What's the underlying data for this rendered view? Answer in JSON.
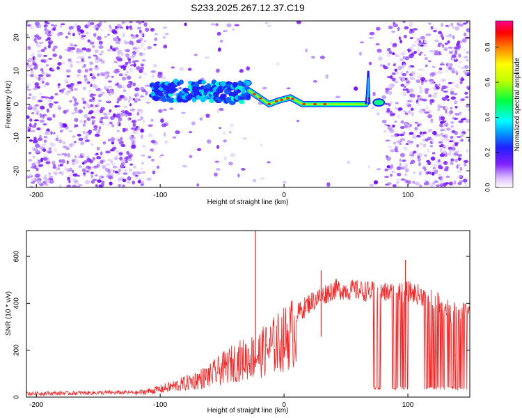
{
  "title": "S233.2025.267.12.37.C19",
  "chart_data": [
    {
      "type": "heatmap",
      "name": "spectrogram",
      "xlabel": "Height of straight line (km)",
      "ylabel": "Frequency (Hz)",
      "xlim": [
        -208,
        150
      ],
      "ylim": [
        -25,
        25
      ],
      "xticks": [
        -200,
        -100,
        0,
        100
      ],
      "yticks": [
        -20,
        -10,
        0,
        10,
        20
      ],
      "colorbar": {
        "label": "Normalized spectral amplitude",
        "range": [
          0.0,
          0.95
        ],
        "ticks": [
          0.0,
          0.2,
          0.4,
          0.6,
          0.8
        ],
        "tick_labels": [
          "0.0",
          "0.2",
          "0.4",
          "0.6",
          "0.8"
        ]
      },
      "signal_track": [
        {
          "x": -107,
          "y": 4
        },
        {
          "x": -95,
          "y": 4
        },
        {
          "x": -80,
          "y": 4
        },
        {
          "x": -60,
          "y": 4
        },
        {
          "x": -40,
          "y": 3
        },
        {
          "x": -28,
          "y": 4
        },
        {
          "x": -20,
          "y": 2
        },
        {
          "x": -12,
          "y": 0
        },
        {
          "x": -5,
          "y": 1
        },
        {
          "x": 5,
          "y": 2
        },
        {
          "x": 15,
          "y": 0
        },
        {
          "x": 40,
          "y": 0
        },
        {
          "x": 66,
          "y": 0
        }
      ],
      "annotations": [
        "vertical spike near 68 km up to ~10 Hz",
        "blob at ~76 km, ~0 Hz"
      ]
    },
    {
      "type": "line",
      "name": "snr",
      "xlabel": "Height of straight line (km)",
      "ylabel": "SNR (10 * v/v)",
      "xlim": [
        -208,
        150
      ],
      "ylim": [
        0,
        710
      ],
      "xticks": [
        -200,
        -100,
        0,
        100
      ],
      "yticks": [
        0,
        200,
        400,
        600
      ],
      "series_color": "#ff2020",
      "series": [
        {
          "name": "SNR",
          "envelope": [
            {
              "x": -208,
              "y": 15
            },
            {
              "x": -120,
              "y": 20
            },
            {
              "x": -100,
              "y": 40
            },
            {
              "x": -80,
              "y": 70
            },
            {
              "x": -60,
              "y": 110
            },
            {
              "x": -40,
              "y": 180
            },
            {
              "x": -20,
              "y": 220
            },
            {
              "x": 0,
              "y": 300
            },
            {
              "x": 20,
              "y": 400
            },
            {
              "x": 40,
              "y": 460
            },
            {
              "x": 60,
              "y": 455
            },
            {
              "x": 80,
              "y": 445
            },
            {
              "x": 100,
              "y": 450
            },
            {
              "x": 120,
              "y": 420
            },
            {
              "x": 135,
              "y": 360
            },
            {
              "x": 150,
              "y": 360
            }
          ]
        }
      ],
      "spikes": [
        {
          "x": -23,
          "y": 710
        },
        {
          "x": 98,
          "y": 585
        },
        {
          "x": 30,
          "y": 540
        }
      ],
      "dropouts": [
        {
          "x_from": 72,
          "x_to": 78,
          "y": 30
        },
        {
          "x_from": 87,
          "x_to": 100,
          "y": 30
        },
        {
          "x_from": 113,
          "x_to": 148,
          "y": 30
        }
      ]
    }
  ]
}
